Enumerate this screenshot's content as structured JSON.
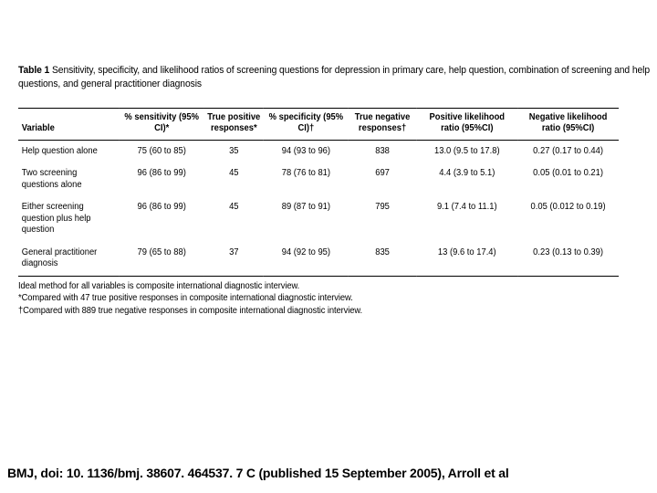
{
  "caption": {
    "lead": "Table 1",
    "text": " Sensitivity, specificity, and likelihood ratios of screening questions for depression in primary care, help question, combination of screening and help questions, and general practitioner diagnosis"
  },
  "table": {
    "columns": [
      "Variable",
      "% sensitivity (95% CI)*",
      "True positive responses*",
      "% specificity (95% CI)†",
      "True negative responses†",
      "Positive likelihood ratio (95%CI)",
      "Negative likelihood ratio (95%CI)"
    ],
    "rows": [
      [
        "Help question alone",
        "75  (60 to 85)",
        "35",
        "94  (93 to 96)",
        "838",
        "13.0  (9.5 to 17.8)",
        "0.27  (0.17 to 0.44)"
      ],
      [
        "Two screening questions alone",
        "96  (86 to 99)",
        "45",
        "78  (76 to 81)",
        "697",
        "4.4  (3.9 to 5.1)",
        "0.05  (0.01 to 0.21)"
      ],
      [
        "Either screening question plus help question",
        "96  (86 to 99)",
        "45",
        "89  (87 to 91)",
        "795",
        "9.1  (7.4 to 11.1)",
        "0.05  (0.012 to 0.19)"
      ],
      [
        "General practitioner diagnosis",
        "79  (65 to 88)",
        "37",
        "94  (92 to 95)",
        "835",
        "13  (9.6 to 17.4)",
        "0.23  (0.13 to 0.39)"
      ]
    ]
  },
  "footnotes": {
    "l1": "Ideal method for all variables is composite international diagnostic interview.",
    "l2": "*Compared with 47 true positive responses in composite international diagnostic interview.",
    "l3": "†Compared with 889 true negative responses in composite international diagnostic interview."
  },
  "citation": "BMJ, doi: 10. 1136/bmj. 38607. 464537. 7 C (published 15 September 2005), Arroll et al"
}
